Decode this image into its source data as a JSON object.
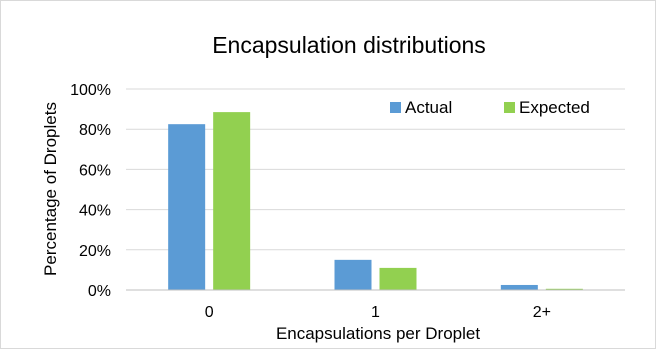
{
  "chart_data": {
    "type": "bar",
    "title": "Encapsulation distributions",
    "xlabel": "Encapsulations per Droplet",
    "ylabel": "Percentage of Droplets",
    "categories": [
      "0",
      "1",
      "2+"
    ],
    "y_ticks": [
      "0%",
      "20%",
      "40%",
      "60%",
      "80%",
      "100%"
    ],
    "ylim": [
      0,
      100
    ],
    "grid": true,
    "legend_position": "top-right",
    "series": [
      {
        "name": "Actual",
        "color": "#5b9bd5",
        "values": [
          82.5,
          15,
          2.5
        ]
      },
      {
        "name": "Expected",
        "color": "#92d050",
        "values": [
          88.5,
          11,
          0.6
        ]
      }
    ]
  }
}
